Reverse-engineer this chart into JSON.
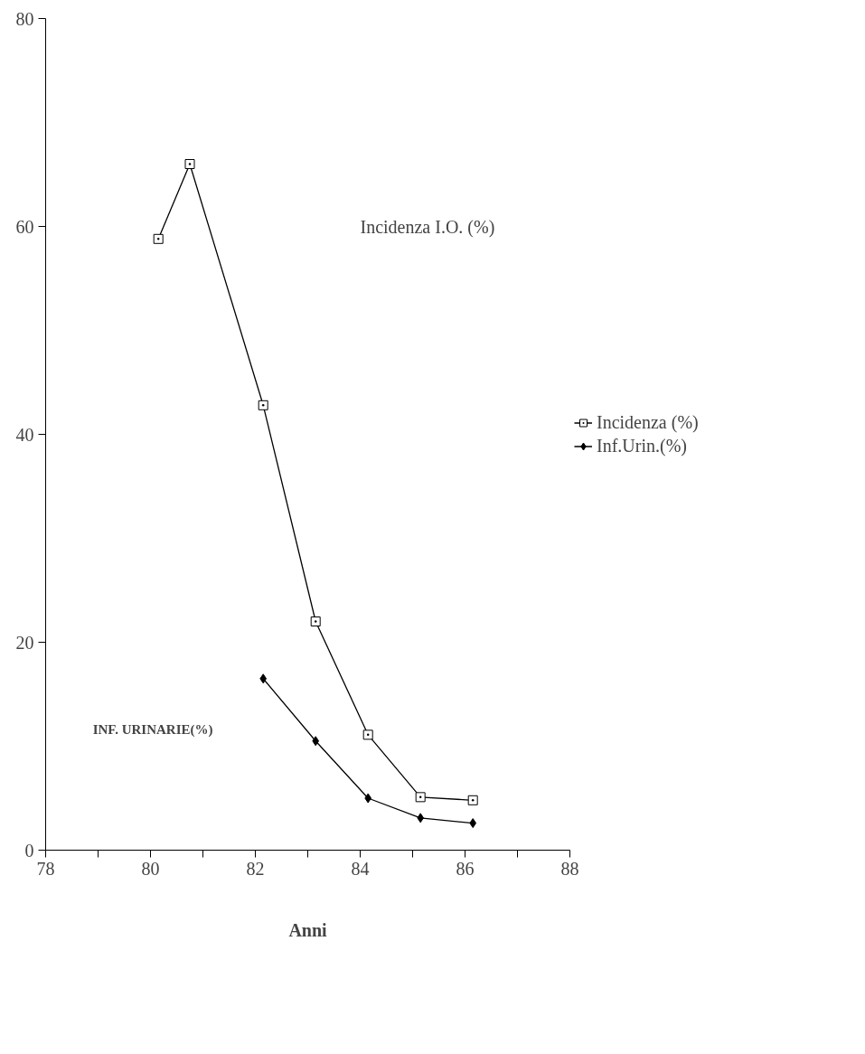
{
  "chart_data": {
    "type": "line",
    "annotations": [
      "Incidenza I.O. (%)",
      "INF. URINARIE(%)",
      "Anni"
    ],
    "series": [
      {
        "name": "Incidenza (%)",
        "color": "#000000",
        "marker": "square",
        "x": [
          80.15,
          80.75,
          82.15,
          83.15,
          84.15,
          85.15,
          86.15
        ],
        "values": [
          58.8,
          66,
          42.8,
          22,
          11.1,
          5.1,
          4.8
        ]
      },
      {
        "name": "Inf.Urin.(%)",
        "color": "#000000",
        "marker": "diamond",
        "x": [
          82.15,
          83.15,
          84.15,
          85.15,
          86.15
        ],
        "values": [
          16.5,
          10.5,
          5.0,
          3.1,
          2.6
        ]
      }
    ],
    "xlim": [
      78,
      88
    ],
    "xticks": [
      78,
      {
        "value": 79,
        "label": null
      },
      80,
      {
        "value": 81,
        "label": null
      },
      82,
      {
        "value": 83,
        "label": null
      },
      84,
      {
        "value": 85,
        "label": null
      },
      86,
      {
        "value": 87,
        "label": null
      },
      88
    ],
    "ylim": [
      0,
      80
    ],
    "yticks": [
      0,
      20,
      40,
      60,
      80
    ],
    "grid": false,
    "legend": "right",
    "line_style": "solid"
  }
}
